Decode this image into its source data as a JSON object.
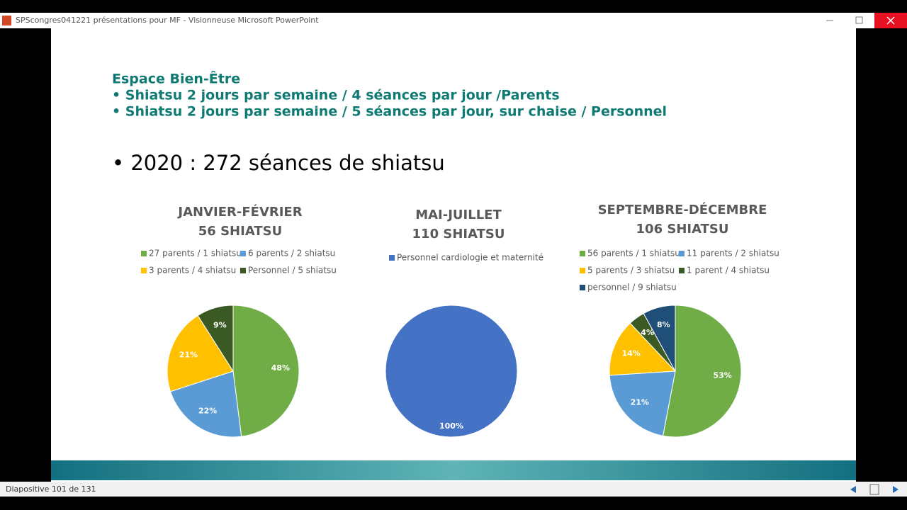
{
  "window_title": "SPScongres041221 présentations pour MF - Visionneuse Microsoft PowerPoint",
  "slide": {
    "heading": "Espace Bien-Être",
    "lines": [
      "• Shiatsu 2 jours par semaine / 4 séances par jour /Parents",
      "• Shiatsu 2 jours par semaine / 5 séances par jour, sur chaise / Personnel"
    ],
    "bullet": "• 2020 : 272 séances de shiatsu"
  },
  "status": "Diapositive 101 de 131",
  "chart_data": [
    {
      "type": "pie",
      "title": "JANVIER-FÉVRIER",
      "subtitle": "56 SHIATSU",
      "categories": [
        "27 parents / 1 shiatsu",
        "6 parents / 2 shiatsu",
        "3 parents / 4 shiatsu",
        "Personnel / 5 shiatsu"
      ],
      "values": [
        48,
        22,
        21,
        9
      ],
      "value_labels": [
        "48%",
        "22%",
        "21%",
        "9%"
      ],
      "colors": [
        "#70ad47",
        "#5b9bd5",
        "#ffc000",
        "#3b5a23"
      ]
    },
    {
      "type": "pie",
      "title": "MAI-JUILLET",
      "subtitle": "110 SHIATSU",
      "categories": [
        "Personnel cardiologie et maternité"
      ],
      "values": [
        100
      ],
      "value_labels": [
        "100%"
      ],
      "colors": [
        "#4472c4"
      ]
    },
    {
      "type": "pie",
      "title": "SEPTEMBRE-DÉCEMBRE",
      "subtitle": "106 SHIATSU",
      "categories": [
        "56 parents / 1 shiatsu",
        "11 parents / 2 shiatsu",
        "5 parents / 3 shiatsu",
        "1 parent / 4 shiatsu",
        "personnel / 9 shiatsu"
      ],
      "values": [
        53,
        21,
        14,
        4,
        8
      ],
      "value_labels": [
        "53%",
        "21%",
        "14%",
        "4%",
        "8%"
      ],
      "colors": [
        "#70ad47",
        "#5b9bd5",
        "#ffc000",
        "#3b5a23",
        "#1f4e79"
      ]
    }
  ]
}
